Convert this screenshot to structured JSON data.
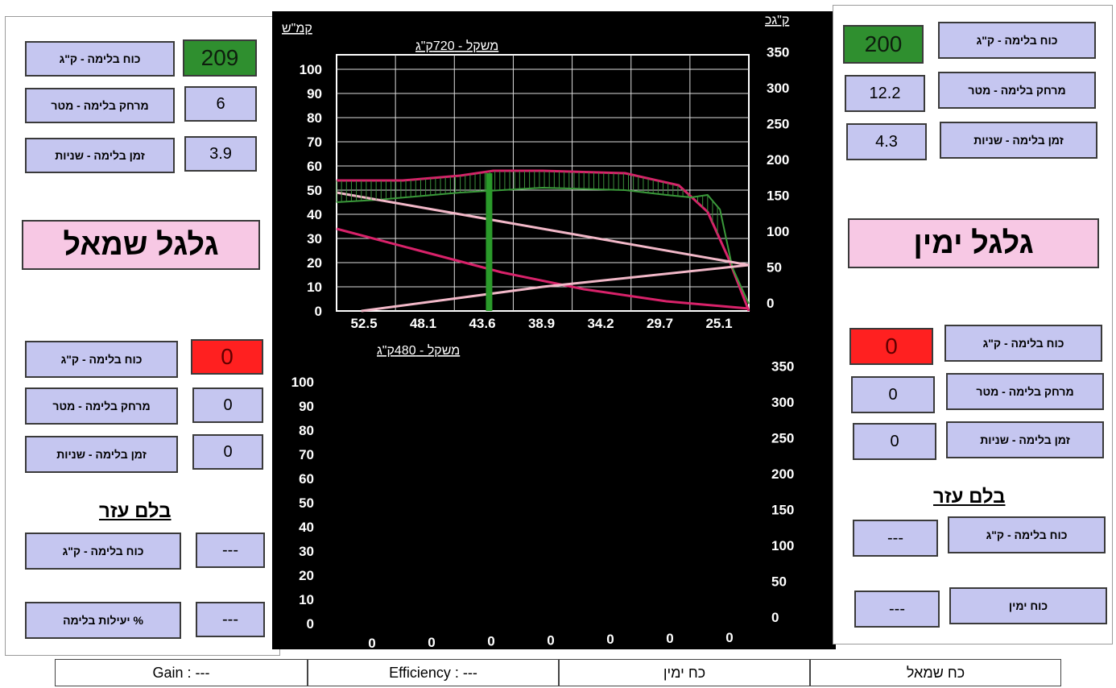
{
  "left_panel": {
    "wheel_title": "גלגל שמאל",
    "top_rows": [
      {
        "label": "כוח בלימה - ק\"ג",
        "value": "209"
      },
      {
        "label": "מרחק בלימה - מטר",
        "value": "6"
      },
      {
        "label": "זמן בלימה - שניות",
        "value": "3.9"
      }
    ],
    "bottom_rows": [
      {
        "label": "כוח בלימה - ק\"ג",
        "value": "0"
      },
      {
        "label": "מרחק בלימה - מטר",
        "value": "0"
      },
      {
        "label": "זמן בלימה - שניות",
        "value": "0"
      }
    ],
    "aux_title": "בלם עזר",
    "aux_rows": [
      {
        "label": "כוח בלימה - ק\"ג",
        "value": "---"
      },
      {
        "label": "% יעילות בלימה",
        "value": "---"
      }
    ]
  },
  "right_panel": {
    "wheel_title": "גלגל ימין",
    "top_rows": [
      {
        "label": "כוח בלימה - ק\"ג",
        "value": "200"
      },
      {
        "label": "מרחק בלימה - מטר",
        "value": "12.2"
      },
      {
        "label": "זמן בלימה - שניות",
        "value": "4.3"
      }
    ],
    "bottom_rows": [
      {
        "label": "כוח בלימה - ק\"ג",
        "value": "0"
      },
      {
        "label": "מרחק בלימה - מטר",
        "value": "0"
      },
      {
        "label": "זמן בלימה - שניות",
        "value": "0"
      }
    ],
    "aux_title": "בלם עזר",
    "aux_rows": [
      {
        "label": "כוח בלימה - ק\"ג",
        "value": "---"
      },
      {
        "label": "כוח ימין",
        "value": "---"
      }
    ]
  },
  "footer": {
    "gain": "Gain : ---",
    "efficiency": "Efficiency : ---",
    "right_force": "כח ימין",
    "left_force": "כח שמאל"
  },
  "colors": {
    "label_bg": "#c5c6f0",
    "good": "#2f8f2f",
    "alarm": "#ff2020",
    "wheel_bg": "#f7c8e4",
    "chart_bg": "#000000"
  },
  "chart_data": [
    {
      "type": "line",
      "title": "משקל - 720ק\"ג",
      "left_unit": "קמ\"ש",
      "right_unit": "ק\"גכ",
      "left_ticks": [
        "0",
        "10",
        "20",
        "30",
        "40",
        "50",
        "60",
        "70",
        "80",
        "90",
        "100"
      ],
      "right_ticks": [
        "0",
        "50",
        "100",
        "150",
        "200",
        "250",
        "300",
        "350"
      ],
      "x_ticks": [
        "52.5",
        "48.1",
        "43.6",
        "38.9",
        "34.2",
        "29.7",
        "25.1"
      ],
      "ylim_left": [
        0,
        100
      ],
      "ylim_right": [
        0,
        350
      ],
      "grid": true,
      "series": [
        {
          "color": "#d8226a",
          "x": [
            0,
            0.16,
            0.3,
            0.38,
            0.5,
            0.7,
            0.83,
            0.9,
            0.95,
            1.0
          ],
          "y": [
            54,
            54,
            56,
            58,
            58,
            57,
            52,
            41,
            22,
            0
          ]
        },
        {
          "color": "#3a9a3a",
          "x": [
            0,
            0.1,
            0.3,
            0.5,
            0.7,
            0.8,
            0.86,
            0.9,
            0.93,
            0.96,
            1.0
          ],
          "y": [
            45,
            46,
            49,
            51,
            50,
            48,
            47,
            48,
            42,
            18,
            3
          ]
        },
        {
          "color": "#f2b8c8",
          "x": [
            0,
            0.5,
            1.0
          ],
          "y": [
            49,
            34,
            19
          ]
        },
        {
          "color": "#d8226a",
          "x": [
            0,
            0.2,
            0.4,
            0.6,
            0.8,
            1.0
          ],
          "y": [
            34,
            25,
            16,
            9,
            4,
            1
          ]
        },
        {
          "color": "#f2b8c8",
          "x": [
            0.06,
            0.5,
            1.0
          ],
          "y": [
            0,
            10,
            19
          ]
        }
      ],
      "marker": {
        "color": "#2a9a2a",
        "x": 0.37
      }
    },
    {
      "type": "line",
      "title": "משקל - 480ק\"ג",
      "left_ticks": [
        "0",
        "10",
        "20",
        "30",
        "40",
        "50",
        "60",
        "70",
        "80",
        "90",
        "100"
      ],
      "right_ticks": [
        "0",
        "50",
        "100",
        "150",
        "200",
        "250",
        "300",
        "350"
      ],
      "x_ticks": [
        "0",
        "0",
        "0",
        "0",
        "0",
        "0",
        "0"
      ],
      "ylim_left": [
        0,
        100
      ],
      "ylim_right": [
        0,
        350
      ],
      "grid": false,
      "series": []
    }
  ]
}
